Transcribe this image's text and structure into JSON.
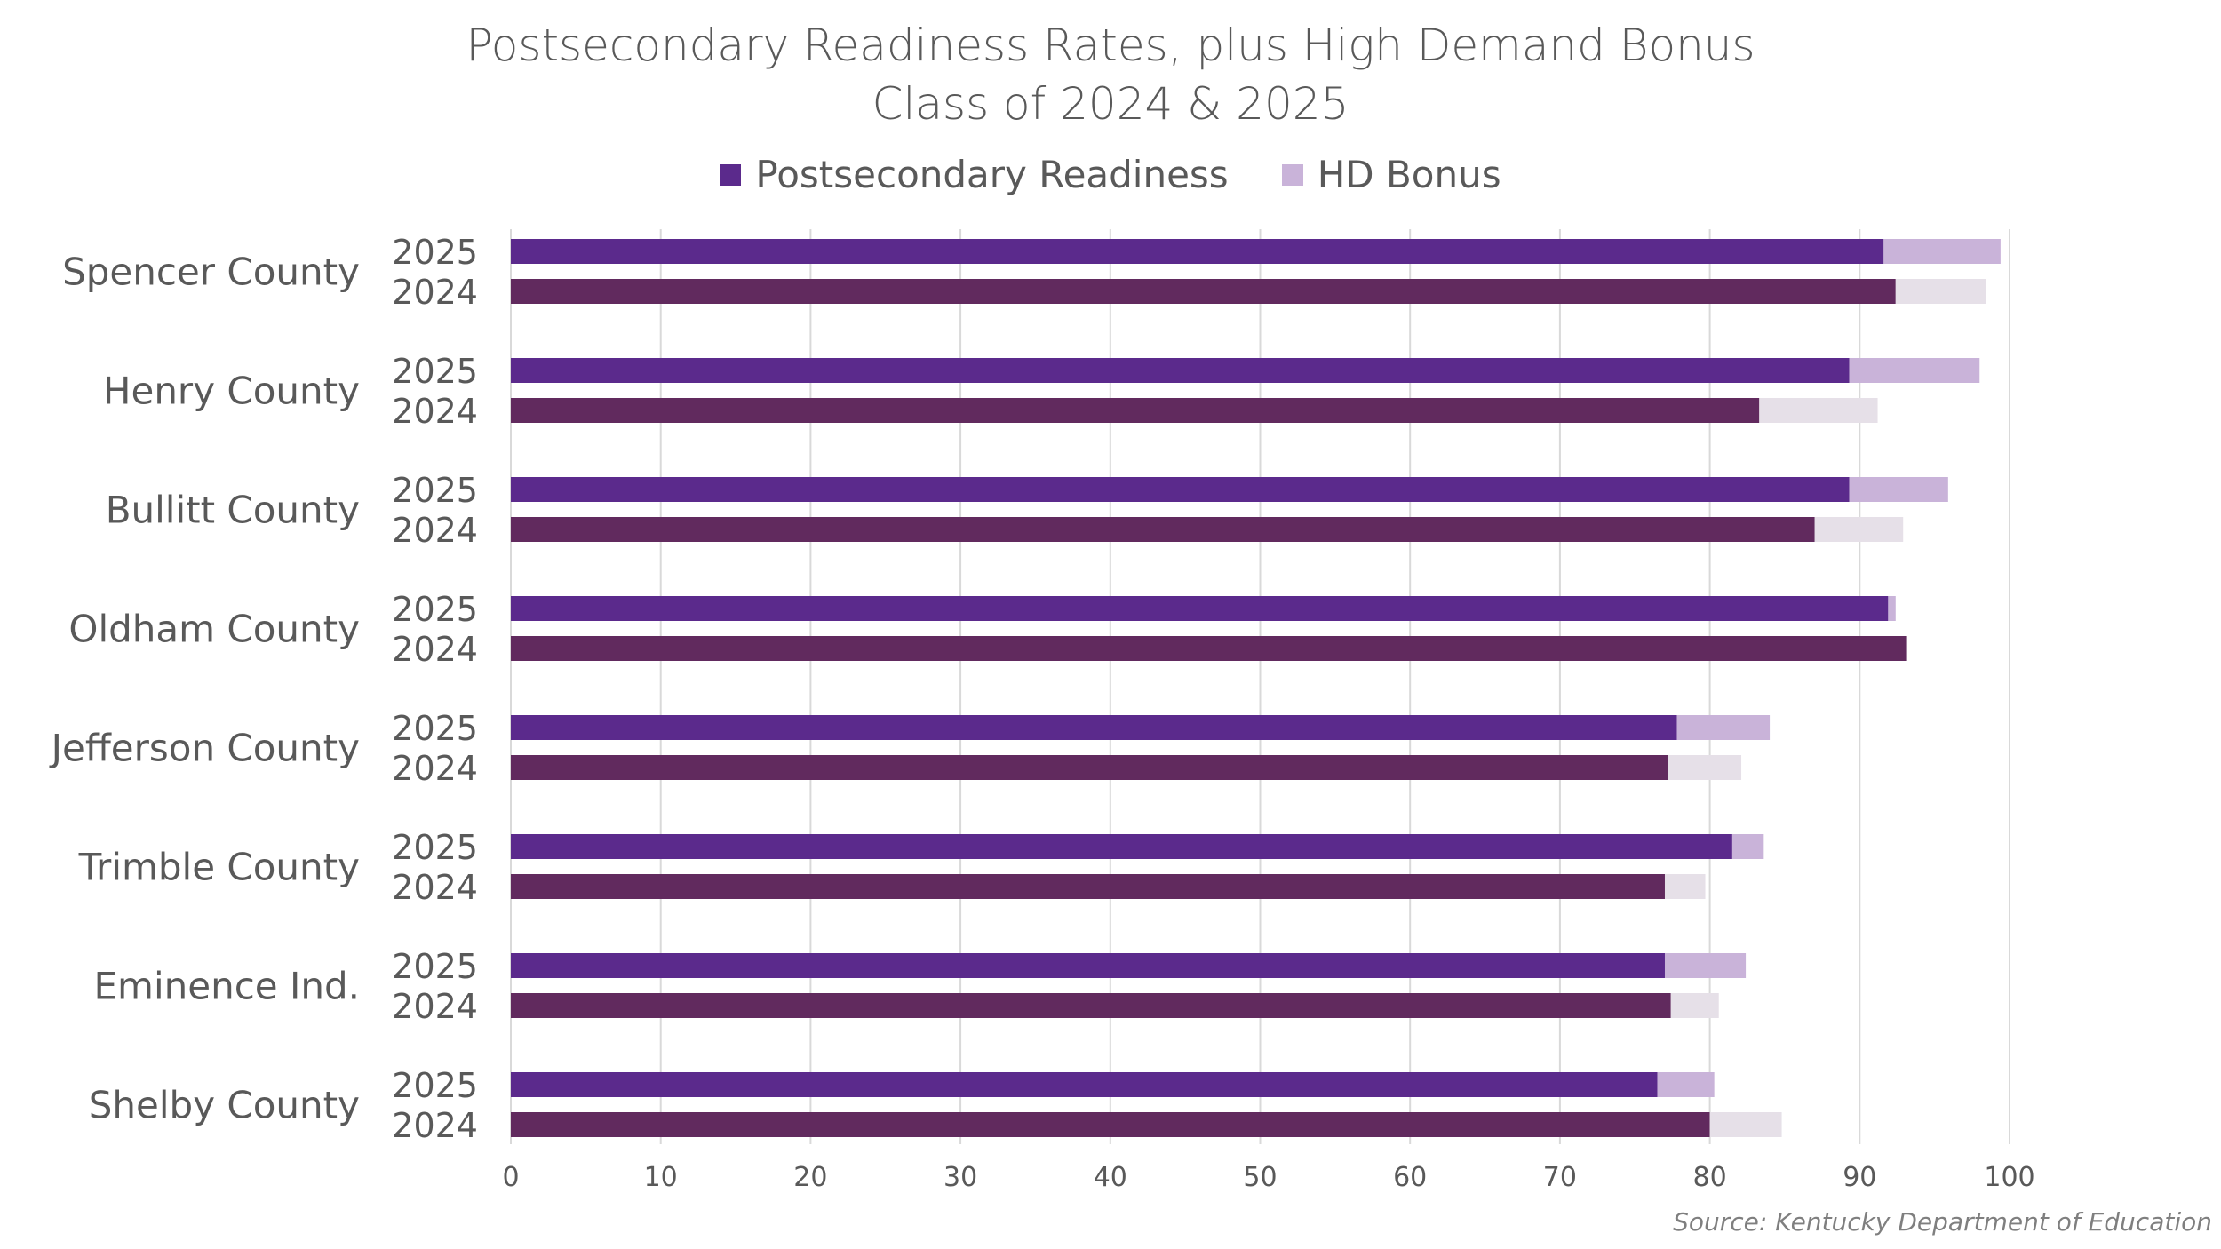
{
  "chart_data": {
    "type": "bar",
    "orientation": "horizontal",
    "stacked": true,
    "title": "Postsecondary Readiness Rates, plus High Demand Bonus",
    "subtitle": "Class of 2024 & 2025",
    "source": "Source: Kentucky Department of Education",
    "legend_position": "top",
    "grid": true,
    "xlim": [
      0,
      100
    ],
    "x_ticks": [
      "0",
      "10",
      "20",
      "30",
      "40",
      "50",
      "60",
      "70",
      "80",
      "90",
      "100"
    ],
    "legend": [
      {
        "label": "Postsecondary Readiness",
        "color": "#5b2a8c"
      },
      {
        "label": "HD Bonus",
        "color": "#c9b3d9"
      }
    ],
    "colors": {
      "readiness_2025": "#5b2a8c",
      "readiness_2024": "#612a5e",
      "bonus_2025": "#c9b3d9",
      "bonus_2024": "#e6e0e8",
      "text": "#595959",
      "grid": "#d9d9d9"
    },
    "groups": [
      {
        "name": "Spencer County",
        "rows": [
          {
            "year": "2025",
            "readiness": 91.6,
            "bonus": 7.8
          },
          {
            "year": "2024",
            "readiness": 92.4,
            "bonus": 6.0
          }
        ]
      },
      {
        "name": "Henry County",
        "rows": [
          {
            "year": "2025",
            "readiness": 89.3,
            "bonus": 8.7
          },
          {
            "year": "2024",
            "readiness": 83.3,
            "bonus": 7.9
          }
        ]
      },
      {
        "name": "Bullitt County",
        "rows": [
          {
            "year": "2025",
            "readiness": 89.3,
            "bonus": 6.6
          },
          {
            "year": "2024",
            "readiness": 87.0,
            "bonus": 5.9
          }
        ]
      },
      {
        "name": "Oldham County",
        "rows": [
          {
            "year": "2025",
            "readiness": 91.9,
            "bonus": 0.5
          },
          {
            "year": "2024",
            "readiness": 93.1,
            "bonus": 0
          }
        ]
      },
      {
        "name": "Jefferson County",
        "rows": [
          {
            "year": "2025",
            "readiness": 77.8,
            "bonus": 6.2
          },
          {
            "year": "2024",
            "readiness": 77.2,
            "bonus": 4.9
          }
        ]
      },
      {
        "name": "Trimble County",
        "rows": [
          {
            "year": "2025",
            "readiness": 81.5,
            "bonus": 2.1
          },
          {
            "year": "2024",
            "readiness": 77.0,
            "bonus": 2.7
          }
        ]
      },
      {
        "name": "Eminence Ind.",
        "rows": [
          {
            "year": "2025",
            "readiness": 77.0,
            "bonus": 5.4
          },
          {
            "year": "2024",
            "readiness": 77.4,
            "bonus": 3.2
          }
        ]
      },
      {
        "name": "Shelby County",
        "rows": [
          {
            "year": "2025",
            "readiness": 76.5,
            "bonus": 3.8
          },
          {
            "year": "2024",
            "readiness": 80.0,
            "bonus": 4.8
          }
        ]
      }
    ]
  }
}
